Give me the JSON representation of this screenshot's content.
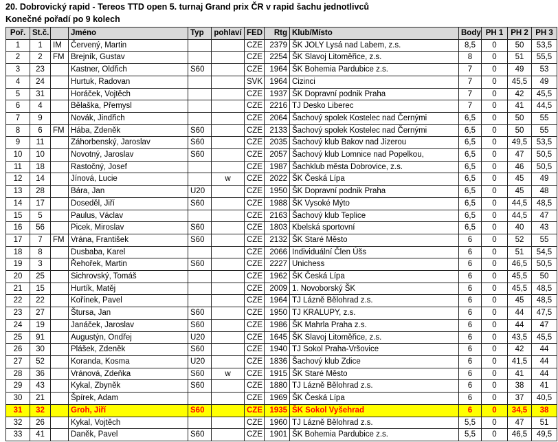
{
  "title": "20. Dobrovický rapid - Tereos TTD open 5. turnaj Grand prix ČR v rapid šachu jednotlivců",
  "subtitle": "Konečné pořadí po 9 kolech",
  "colors": {
    "header_bg": "#d9d9d9",
    "highlight_bg": "#ffff00",
    "highlight_text": "#ff0000",
    "border": "#222222"
  },
  "table": {
    "headers": [
      "Poř.",
      "St.č.",
      "",
      "Jméno",
      "Typ",
      "pohlaví",
      "FED",
      "Rtg",
      "Klub/Místo",
      "Body",
      "PH 1",
      "PH 2",
      "PH 3"
    ],
    "highlighted_row_index": 30,
    "rows": [
      [
        "1",
        "1",
        "IM",
        "Červený, Martin",
        "",
        "",
        "CZE",
        "2379",
        "ŠK JOLY Lysá nad Labem, z.s.",
        "8,5",
        "0",
        "50",
        "53,5"
      ],
      [
        "2",
        "2",
        "FM",
        "Brejník, Gustav",
        "",
        "",
        "CZE",
        "2254",
        "ŠK Slavoj Litoměřice, z.s.",
        "8",
        "0",
        "51",
        "55,5"
      ],
      [
        "3",
        "23",
        "",
        "Kastner, Oldřich",
        "S60",
        "",
        "CZE",
        "1964",
        "ŠK Bohemia Pardubice z.s.",
        "7",
        "0",
        "49",
        "53"
      ],
      [
        "4",
        "24",
        "",
        "Hurtuk, Radovan",
        "",
        "",
        "SVK",
        "1964",
        "Cizinci",
        "7",
        "0",
        "45,5",
        "49"
      ],
      [
        "5",
        "31",
        "",
        "Horáček, Vojtěch",
        "",
        "",
        "CZE",
        "1937",
        "ŠK Dopravní podnik Praha",
        "7",
        "0",
        "42",
        "45,5"
      ],
      [
        "6",
        "4",
        "",
        "Bělaška, Přemysl",
        "",
        "",
        "CZE",
        "2216",
        "TJ Desko Liberec",
        "7",
        "0",
        "41",
        "44,5"
      ],
      [
        "7",
        "9",
        "",
        "Novák, Jindřich",
        "",
        "",
        "CZE",
        "2064",
        "Šachový spolek Kostelec nad Černými",
        "6,5",
        "0",
        "50",
        "55"
      ],
      [
        "8",
        "6",
        "FM",
        "Hába, Zdeněk",
        "S60",
        "",
        "CZE",
        "2133",
        "Šachový spolek Kostelec nad Černými",
        "6,5",
        "0",
        "50",
        "55"
      ],
      [
        "9",
        "11",
        "",
        "Záhorbenský, Jaroslav",
        "S60",
        "",
        "CZE",
        "2035",
        "Šachový klub Bakov nad Jizerou",
        "6,5",
        "0",
        "49,5",
        "53,5"
      ],
      [
        "10",
        "10",
        "",
        "Novotný, Jaroslav",
        "S60",
        "",
        "CZE",
        "2057",
        "Šachový klub Lomnice nad Popelkou,",
        "6,5",
        "0",
        "47",
        "50,5"
      ],
      [
        "11",
        "18",
        "",
        "Rastočný, Josef",
        "",
        "",
        "CZE",
        "1987",
        "Šachklub města Dobrovice, z.s.",
        "6,5",
        "0",
        "46",
        "50,5"
      ],
      [
        "12",
        "14",
        "",
        "Jínová, Lucie",
        "",
        "w",
        "CZE",
        "2022",
        "ŠK Česká Lípa",
        "6,5",
        "0",
        "45",
        "49"
      ],
      [
        "13",
        "28",
        "",
        "Bára, Jan",
        "U20",
        "",
        "CZE",
        "1950",
        "ŠK Dopravní podnik Praha",
        "6,5",
        "0",
        "45",
        "48"
      ],
      [
        "14",
        "17",
        "",
        "Doseděl, Jiří",
        "S60",
        "",
        "CZE",
        "1988",
        "ŠK Vysoké Mýto",
        "6,5",
        "0",
        "44,5",
        "48,5"
      ],
      [
        "15",
        "5",
        "",
        "Paulus, Václav",
        "",
        "",
        "CZE",
        "2163",
        "Šachový klub Teplice",
        "6,5",
        "0",
        "44,5",
        "47"
      ],
      [
        "16",
        "56",
        "",
        "Picek, Miroslav",
        "S60",
        "",
        "CZE",
        "1803",
        "Kbelská sportovní",
        "6,5",
        "0",
        "40",
        "43"
      ],
      [
        "17",
        "7",
        "FM",
        "Vrána, František",
        "S60",
        "",
        "CZE",
        "2132",
        "ŠK Staré Město",
        "6",
        "0",
        "52",
        "55"
      ],
      [
        "18",
        "8",
        "",
        "Dusbaba, Karel",
        "",
        "",
        "CZE",
        "2066",
        "Individuální Člen Úšs",
        "6",
        "0",
        "51",
        "54,5"
      ],
      [
        "19",
        "3",
        "",
        "Řehořek, Martin",
        "S60",
        "",
        "CZE",
        "2227",
        "Unichess",
        "6",
        "0",
        "46,5",
        "50,5"
      ],
      [
        "20",
        "25",
        "",
        "Sichrovský, Tomáš",
        "",
        "",
        "CZE",
        "1962",
        "ŠK Česká Lípa",
        "6",
        "0",
        "45,5",
        "50"
      ],
      [
        "21",
        "15",
        "",
        "Hurtík, Matěj",
        "",
        "",
        "CZE",
        "2009",
        "1. Novoborský ŠK",
        "6",
        "0",
        "45,5",
        "48,5"
      ],
      [
        "22",
        "22",
        "",
        "Kořínek, Pavel",
        "",
        "",
        "CZE",
        "1964",
        "TJ Lázně Bělohrad z.s.",
        "6",
        "0",
        "45",
        "48,5"
      ],
      [
        "23",
        "27",
        "",
        "Štursa, Jan",
        "S60",
        "",
        "CZE",
        "1950",
        "TJ KRALUPY, z.s.",
        "6",
        "0",
        "44",
        "47,5"
      ],
      [
        "24",
        "19",
        "",
        "Janáček, Jaroslav",
        "S60",
        "",
        "CZE",
        "1986",
        "ŠK Mahrla Praha z.s.",
        "6",
        "0",
        "44",
        "47"
      ],
      [
        "25",
        "91",
        "",
        "Augustýn, Ondřej",
        "U20",
        "",
        "CZE",
        "1645",
        "ŠK Slavoj Litoměřice, z.s.",
        "6",
        "0",
        "43,5",
        "45,5"
      ],
      [
        "26",
        "30",
        "",
        "Plášek, Zdeněk",
        "S60",
        "",
        "CZE",
        "1940",
        "TJ Sokol Praha-Vršovice",
        "6",
        "0",
        "42",
        "44"
      ],
      [
        "27",
        "52",
        "",
        "Koranda, Kosma",
        "U20",
        "",
        "CZE",
        "1836",
        "Šachový klub Zdice",
        "6",
        "0",
        "41,5",
        "44"
      ],
      [
        "28",
        "36",
        "",
        "Vránová, Zdeňka",
        "S60",
        "w",
        "CZE",
        "1915",
        "ŠK Staré Město",
        "6",
        "0",
        "41",
        "44"
      ],
      [
        "29",
        "43",
        "",
        "Kykal, Zbyněk",
        "S60",
        "",
        "CZE",
        "1880",
        "TJ Lázně Bělohrad z.s.",
        "6",
        "0",
        "38",
        "41"
      ],
      [
        "30",
        "21",
        "",
        "Špírek, Adam",
        "",
        "",
        "CZE",
        "1969",
        "ŠK Česká Lípa",
        "6",
        "0",
        "37",
        "40,5"
      ],
      [
        "31",
        "32",
        "",
        "Groh, Jiří",
        "S60",
        "",
        "CZE",
        "1935",
        "ŠK Sokol Vyšehrad",
        "6",
        "0",
        "34,5",
        "38"
      ],
      [
        "32",
        "26",
        "",
        "Kykal, Vojtěch",
        "",
        "",
        "CZE",
        "1960",
        "TJ Lázně Bělohrad z.s.",
        "5,5",
        "0",
        "47",
        "51"
      ],
      [
        "33",
        "41",
        "",
        "Daněk, Pavel",
        "S60",
        "",
        "CZE",
        "1901",
        "ŠK Bohemia Pardubice z.s.",
        "5,5",
        "0",
        "46,5",
        "49,5"
      ]
    ]
  }
}
